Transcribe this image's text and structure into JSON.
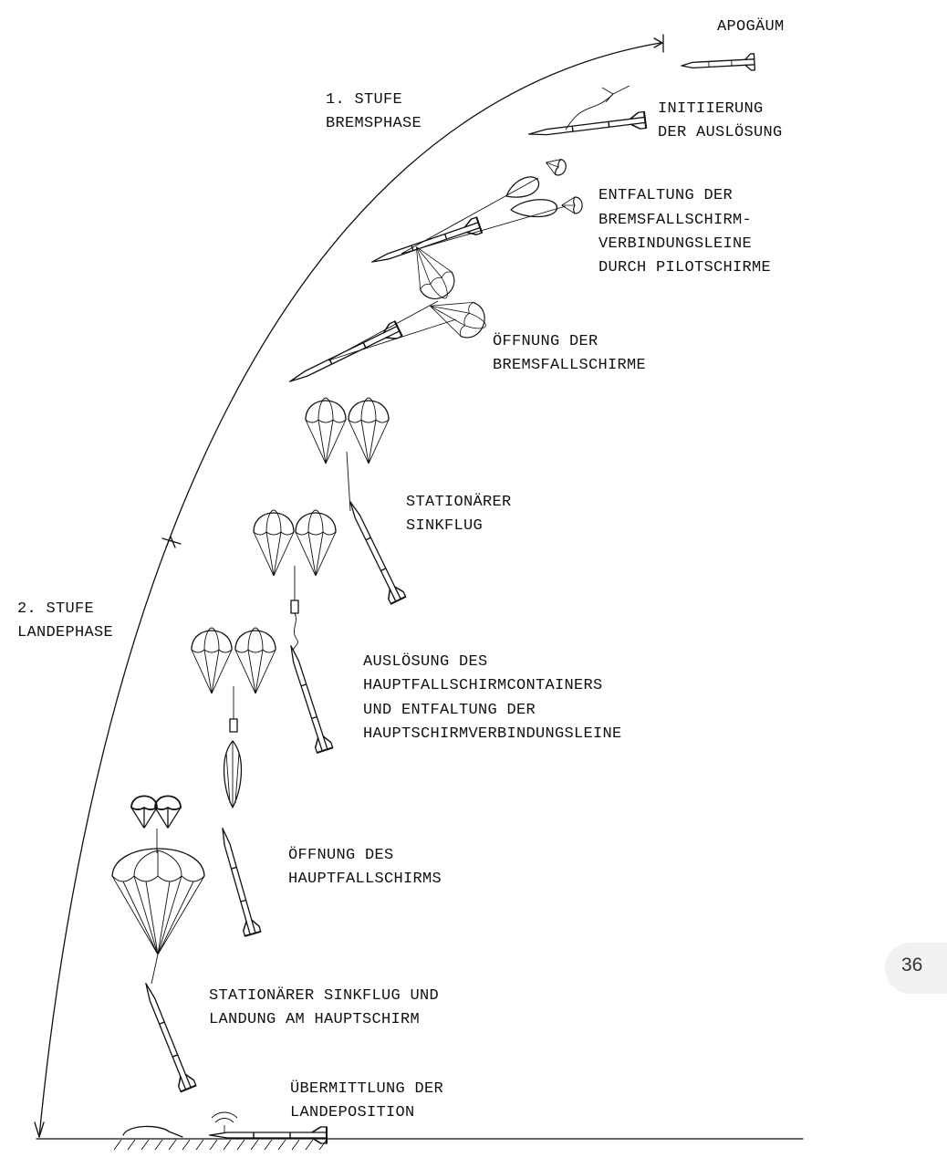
{
  "labels": {
    "apogee": "APOGÄUM",
    "stage1_line1": "1. STUFE",
    "stage1_line2": "BREMSPHASE",
    "stage2_line1": "2. STUFE",
    "stage2_line2": "LANDEPHASE",
    "initiation_line1": "INITIIERUNG",
    "initiation_line2": "DER AUSLÖSUNG",
    "deploy_drogue_line1": "ENTFALTUNG DER",
    "deploy_drogue_line2": "BREMSFALLSCHIRM-",
    "deploy_drogue_line3": "VERBINDUNGSLEINE",
    "deploy_drogue_line4": "DURCH PILOTSCHIRME",
    "open_drogue_line1": "ÖFFNUNG DER",
    "open_drogue_line2": "BREMSFALLSCHIRME",
    "steady_line1": "STATIONÄRER",
    "steady_line2": "SINKFLUG",
    "release_main_line1": "AUSLÖSUNG DES",
    "release_main_line2": "HAUPTFALLSCHIRMCONTAINERS",
    "release_main_line3": "UND ENTFALTUNG DER",
    "release_main_line4": "HAUPTSCHIRMVERBINDUNGSLEINE",
    "open_main_line1": "ÖFFNUNG DES",
    "open_main_line2": "HAUPTFALLSCHIRMS",
    "landing_line1": "STATIONÄRER SINKFLUG UND",
    "landing_line2": "LANDUNG AM HAUPTSCHIRM",
    "transmit_line1": "ÜBERMITTLUNG DER",
    "transmit_line2": "LANDEPOSITION"
  },
  "page_number": "36"
}
